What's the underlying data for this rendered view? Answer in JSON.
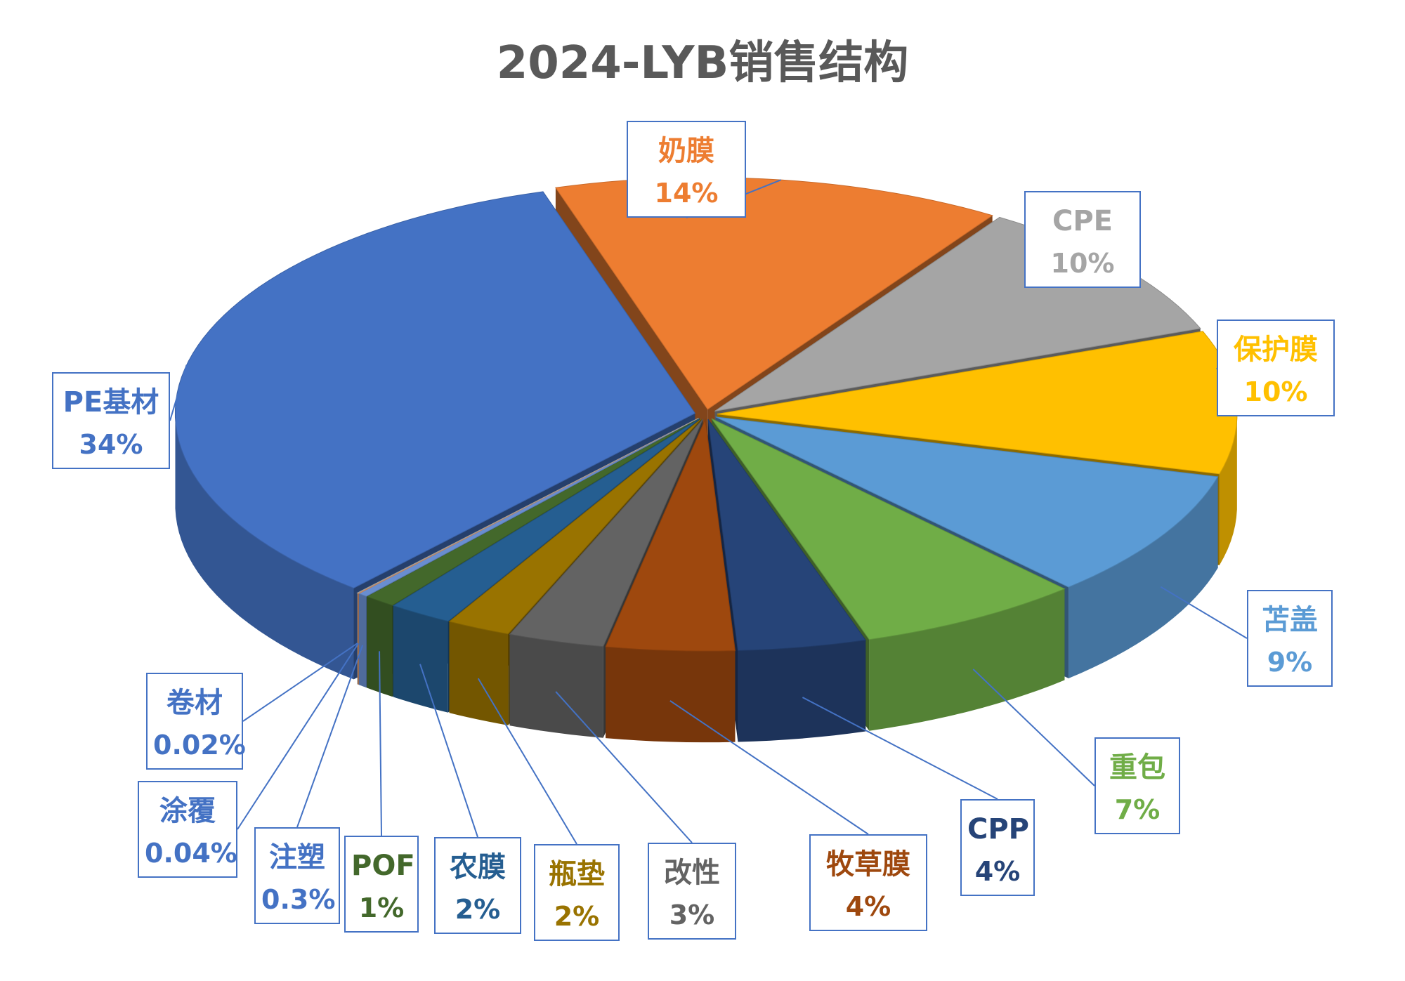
{
  "chart_data": {
    "type": "pie",
    "title": "2024-LYB销售结构",
    "slices": [
      {
        "label": "奶膜",
        "value": 14,
        "value_label": "14%",
        "color": "#ed7d31"
      },
      {
        "label": "CPE",
        "value": 10,
        "value_label": "10%",
        "color": "#a5a5a5"
      },
      {
        "label": "保护膜",
        "value": 10,
        "value_label": "10%",
        "color": "#ffc000"
      },
      {
        "label": "苫盖",
        "value": 9,
        "value_label": "9%",
        "color": "#5b9bd5"
      },
      {
        "label": "重包",
        "value": 7,
        "value_label": "7%",
        "color": "#70ad47"
      },
      {
        "label": "CPP",
        "value": 4,
        "value_label": "4%",
        "color": "#264478"
      },
      {
        "label": "牧草膜",
        "value": 4,
        "value_label": "4%",
        "color": "#9e480e"
      },
      {
        "label": "改性",
        "value": 3,
        "value_label": "3%",
        "color": "#636363"
      },
      {
        "label": "瓶垫",
        "value": 2,
        "value_label": "2%",
        "color": "#997300"
      },
      {
        "label": "农膜",
        "value": 2,
        "value_label": "2%",
        "color": "#255e91"
      },
      {
        "label": "POF",
        "value": 1,
        "value_label": "1%",
        "color": "#43682b"
      },
      {
        "label": "注塑",
        "value": 0.3,
        "value_label": "0.3%",
        "color": "#698ed0"
      },
      {
        "label": "涂覆",
        "value": 0.04,
        "value_label": "0.04%",
        "color": "#f1975a"
      },
      {
        "label": "卷材",
        "value": 0.02,
        "value_label": "0.02%",
        "color": "#b7b7b7"
      },
      {
        "label": "PE基材",
        "value": 34,
        "value_label": "34%",
        "color": "#4472c4"
      }
    ]
  }
}
